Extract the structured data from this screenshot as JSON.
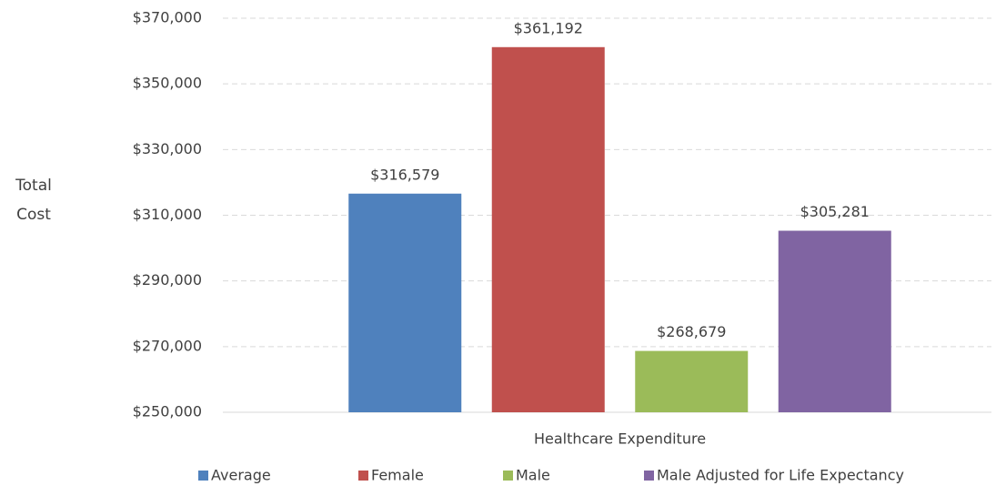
{
  "chart_data": {
    "type": "bar",
    "ylabel": "Total Cost",
    "categories": [
      "Healthcare Expenditure"
    ],
    "series": [
      {
        "name": "Average",
        "color": "#4f81bd",
        "values": [
          316579
        ],
        "value_labels": [
          "$316,579"
        ]
      },
      {
        "name": "Female",
        "color": "#c0504d",
        "values": [
          361192
        ],
        "value_labels": [
          "$361,192"
        ]
      },
      {
        "name": "Male",
        "color": "#9bbb59",
        "values": [
          268679
        ],
        "value_labels": [
          "$268,679"
        ]
      },
      {
        "name": "Male Adjusted for Life Expectancy",
        "color": "#8064a2",
        "values": [
          305281
        ],
        "value_labels": [
          "$305,281"
        ]
      }
    ],
    "ylim": [
      250000,
      370000
    ],
    "yticks": [
      {
        "value": 250000,
        "label": "$250,000"
      },
      {
        "value": 270000,
        "label": "$270,000"
      },
      {
        "value": 290000,
        "label": "$290,000"
      },
      {
        "value": 310000,
        "label": "$310,000"
      },
      {
        "value": 330000,
        "label": "$330,000"
      },
      {
        "value": 350000,
        "label": "$350,000"
      },
      {
        "value": 370000,
        "label": "$370,000"
      }
    ],
    "grid": true,
    "legend": "bottom"
  }
}
